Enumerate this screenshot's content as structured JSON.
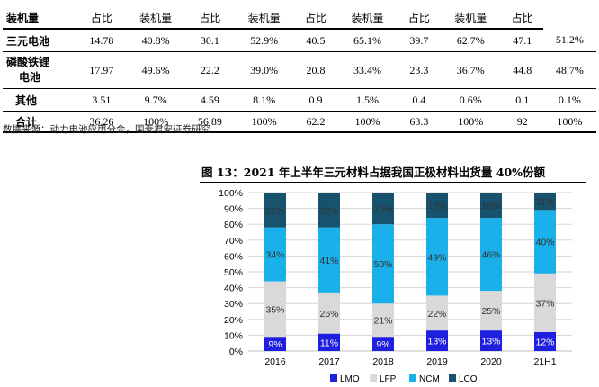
{
  "table": {
    "header": [
      "装机量",
      "占比",
      "装机量",
      "占比",
      "装机量",
      "占比",
      "装机量",
      "占比",
      "装机量",
      "占比"
    ],
    "rows": [
      {
        "label": "三元电池",
        "cells": [
          "14.78",
          "40.8%",
          "30.1",
          "52.9%",
          "40.5",
          "65.1%",
          "39.7",
          "62.7%",
          "47.1",
          "51.2%"
        ]
      },
      {
        "label_line1": "磷酸铁锂",
        "label_line2": "电池",
        "cells": [
          "17.97",
          "49.6%",
          "22.2",
          "39.0%",
          "20.8",
          "33.4%",
          "23.3",
          "36.7%",
          "44.8",
          "48.7%"
        ]
      },
      {
        "label": "其他",
        "cells": [
          "3.51",
          "9.7%",
          "4.59",
          "8.1%",
          "0.9",
          "1.5%",
          "0.4",
          "0.6%",
          "0.1",
          "0.1%"
        ]
      },
      {
        "label": "合计",
        "cells": [
          "36.26",
          "100%",
          "56.89",
          "100%",
          "62.2",
          "100%",
          "63.3",
          "100%",
          "92",
          "100%"
        ]
      }
    ]
  },
  "source_note": "数据来源：动力电池应用分会，国泰君安证券研究",
  "figure_title": "图 13：2021 年上半年三元材料占据我国正极材料出货量 40%份额",
  "chart_data": {
    "type": "bar",
    "stacked": true,
    "percent": true,
    "categories": [
      "2016",
      "2017",
      "2018",
      "2019",
      "2020",
      "21H1"
    ],
    "y_ticks": [
      "0%",
      "10%",
      "20%",
      "30%",
      "40%",
      "50%",
      "60%",
      "70%",
      "80%",
      "90%",
      "100%"
    ],
    "ylim": [
      0,
      100
    ],
    "grid": true,
    "legend_position": "bottom",
    "series": [
      {
        "name": "LMO",
        "color": "#1f1fe0",
        "text_color": "#ffffff",
        "values": [
          9,
          11,
          9,
          13,
          13,
          12
        ],
        "labels": [
          "9%",
          "11%",
          "9%",
          "13%",
          "13%",
          "12%"
        ]
      },
      {
        "name": "LFP",
        "color": "#d9d9d9",
        "text_color": "#333333",
        "values": [
          35,
          26,
          21,
          22,
          25,
          37
        ],
        "labels": [
          "35%",
          "26%",
          "21%",
          "22%",
          "25%",
          "37%"
        ]
      },
      {
        "name": "NCM",
        "color": "#1ab0ea",
        "text_color": "#333333",
        "values": [
          34,
          41,
          50,
          49,
          46,
          40
        ],
        "labels": [
          "34%",
          "41%",
          "50%",
          "49%",
          "46%",
          "40%"
        ]
      },
      {
        "name": "LCO",
        "color": "#17536e",
        "text_color": "#333333",
        "values": [
          22,
          22,
          20,
          16,
          16,
          11
        ],
        "labels": [
          "22%",
          "22%",
          "20%",
          "16%",
          "16%",
          "11%"
        ]
      }
    ]
  }
}
